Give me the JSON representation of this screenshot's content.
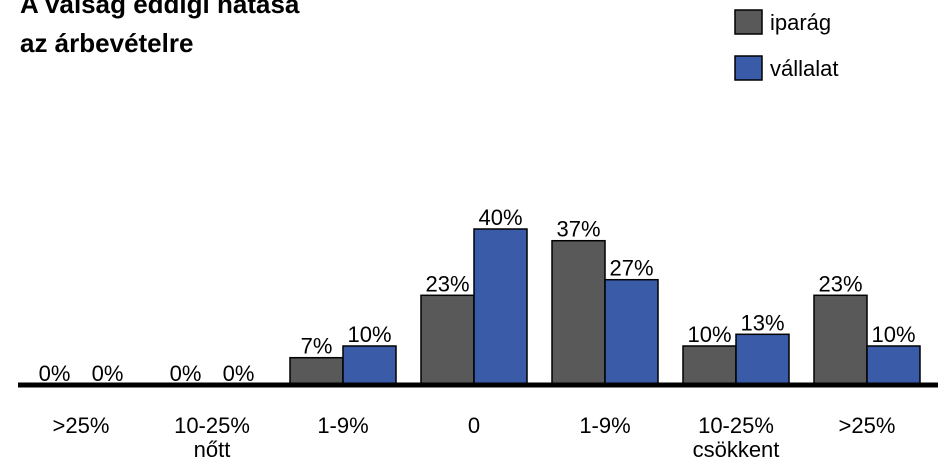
{
  "chart_data": {
    "type": "bar",
    "title_lines": [
      "A válság eddigi hatása",
      "az árbevételre"
    ],
    "categories": [
      ">25%",
      "10-25%",
      "1-9%",
      "0",
      "1-9%",
      "10-25%",
      ">25%"
    ],
    "group_labels": [
      {
        "text": "nőtt",
        "under_category_index": 1
      },
      {
        "text": "csökkent",
        "under_category_index": 5
      }
    ],
    "series": [
      {
        "name": "iparág",
        "color": "#595959",
        "values": [
          0,
          0,
          7,
          23,
          37,
          10,
          23
        ]
      },
      {
        "name": "vállalat",
        "color": "#3A5BA8",
        "values": [
          0,
          0,
          10,
          40,
          27,
          13,
          10
        ]
      }
    ],
    "value_suffix": "%",
    "ylim": [
      0,
      40
    ],
    "grid": false,
    "legend_position": "top-right"
  }
}
